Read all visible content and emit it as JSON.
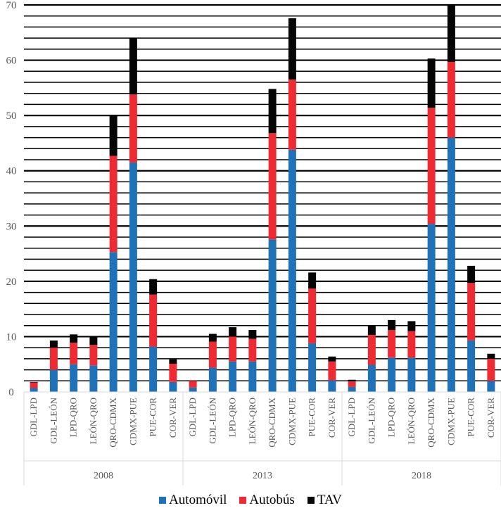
{
  "chart_data": {
    "type": "bar",
    "stacked": true,
    "title": "",
    "xlabel": "",
    "ylabel": "",
    "ylim": [
      0,
      70
    ],
    "yticks": [
      0,
      10,
      20,
      30,
      40,
      50,
      60,
      70
    ],
    "minor_grid_step": 2,
    "grid": true,
    "legend_position": "bottom",
    "groups": [
      {
        "label": "2008",
        "categories": [
          "GDL-LPD",
          "GDL-LEÓN",
          "LPD-QRO",
          "LEÓN-QRO",
          "QRO-CDMX",
          "CDMX-PUE",
          "PUE-COR",
          "COR-VER"
        ]
      },
      {
        "label": "2013",
        "categories": [
          "GDL-LPD",
          "GDL-LEÓN",
          "LPD-QRO",
          "LEÓN-QRO",
          "QRO-CDMX",
          "CDMX-PUE",
          "PUE-COR",
          "COR-VER"
        ]
      },
      {
        "label": "2018",
        "categories": [
          "GDL-LPD",
          "GDL-LEÓN",
          "LPD-QRO",
          "LEÓN-QRO",
          "QRO-CDMX",
          "CDMX-PUE",
          "PUE-COR",
          "COR-VER"
        ]
      }
    ],
    "series": [
      {
        "name": "Automóvil",
        "color": "#1f71b8",
        "values": [
          0.7,
          4.0,
          5.0,
          4.8,
          25.3,
          41.5,
          8.2,
          1.8,
          0.8,
          4.4,
          5.5,
          5.5,
          27.6,
          43.8,
          8.8,
          2.1,
          0.9,
          4.9,
          6.2,
          6.2,
          30.4,
          46.0,
          9.3,
          2.0
        ]
      },
      {
        "name": "Autobús",
        "color": "#ee2a32",
        "values": [
          1.0,
          4.0,
          3.9,
          3.7,
          17.4,
          12.3,
          9.4,
          3.3,
          1.2,
          4.7,
          4.5,
          4.1,
          19.2,
          12.7,
          9.9,
          3.4,
          1.0,
          5.4,
          5.0,
          4.8,
          21.0,
          13.7,
          10.4,
          4.0
        ]
      },
      {
        "name": "TAV",
        "color": "#050505",
        "values": [
          0.1,
          1.3,
          1.5,
          1.5,
          7.4,
          10.2,
          2.8,
          0.8,
          0.1,
          1.4,
          1.7,
          1.6,
          8.0,
          11.1,
          2.9,
          0.9,
          0.3,
          1.6,
          1.8,
          1.8,
          8.9,
          10.3,
          3.1,
          0.9
        ]
      }
    ]
  }
}
